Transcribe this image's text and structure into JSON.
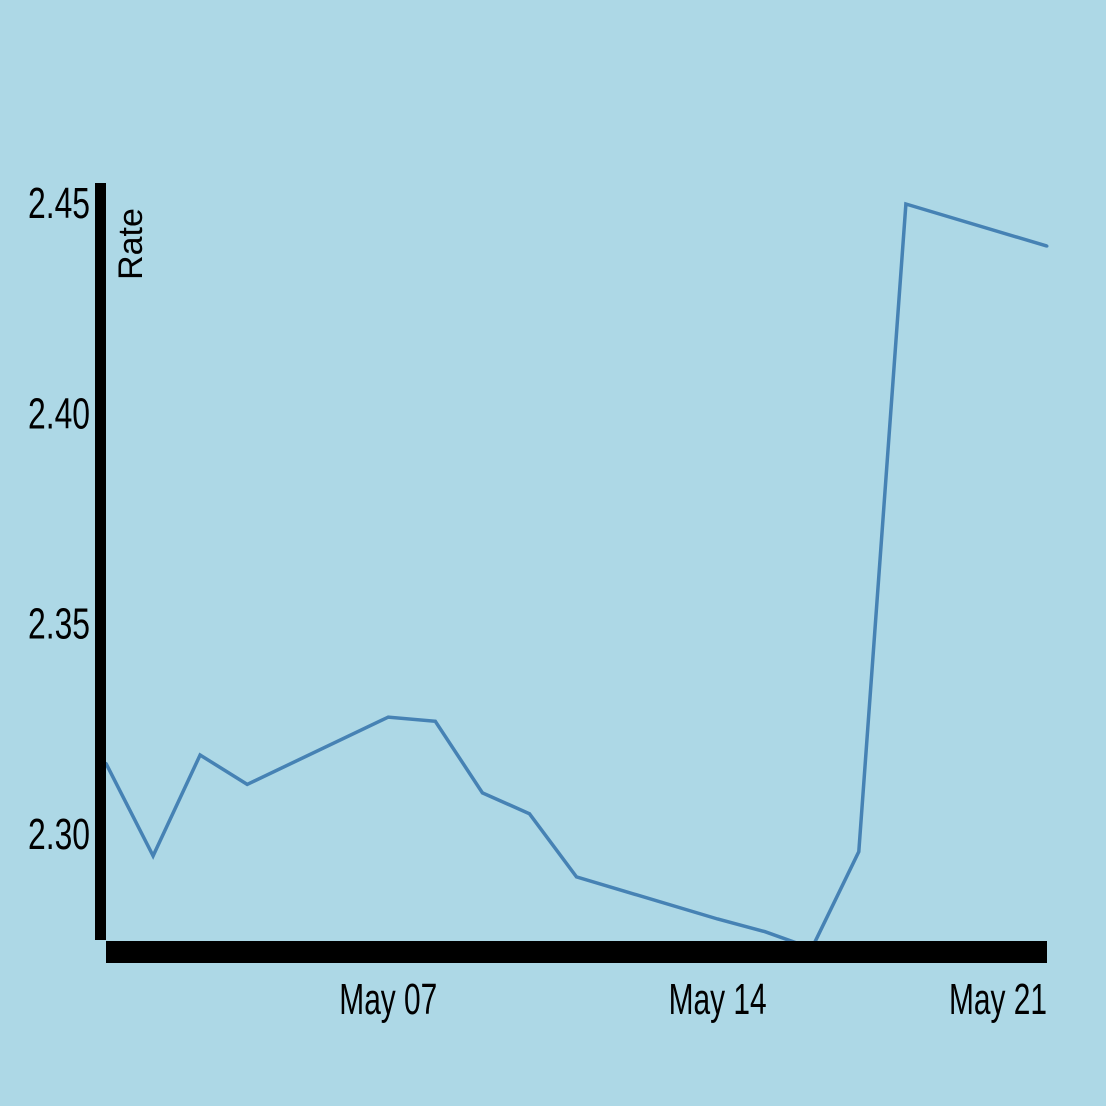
{
  "chart_data": {
    "type": "line",
    "title": "",
    "xlabel": "",
    "ylabel": "Rate",
    "background_color": "#add8e6",
    "line_color": "#4682b4",
    "axis_color": "#000000",
    "grid": false,
    "legend": "none",
    "ylim": [
      2.275,
      2.455
    ],
    "xlim": [
      "2024-05-01",
      "2024-05-21"
    ],
    "y_ticks": [
      {
        "value": 2.45,
        "label": "2.45"
      },
      {
        "value": 2.4,
        "label": "2.40"
      },
      {
        "value": 2.35,
        "label": "2.35"
      },
      {
        "value": 2.3,
        "label": "2.30"
      }
    ],
    "x_ticks": [
      {
        "value": "2024-05-07",
        "label": "May 07"
      },
      {
        "value": "2024-05-14",
        "label": "May 14"
      },
      {
        "value": "2024-05-21",
        "label": "May 21"
      }
    ],
    "series": [
      {
        "x": [
          "2024-05-01",
          "2024-05-02",
          "2024-05-03",
          "2024-05-04",
          "2024-05-07",
          "2024-05-08",
          "2024-05-09",
          "2024-05-10",
          "2024-05-11",
          "2024-05-14",
          "2024-05-15",
          "2024-05-16",
          "2024-05-17",
          "2024-05-18",
          "2024-05-21"
        ],
        "y": [
          2.317,
          2.295,
          2.319,
          2.312,
          2.328,
          2.327,
          2.31,
          2.305,
          2.29,
          2.28,
          2.277,
          2.273,
          2.296,
          2.45,
          2.44
        ]
      }
    ]
  }
}
